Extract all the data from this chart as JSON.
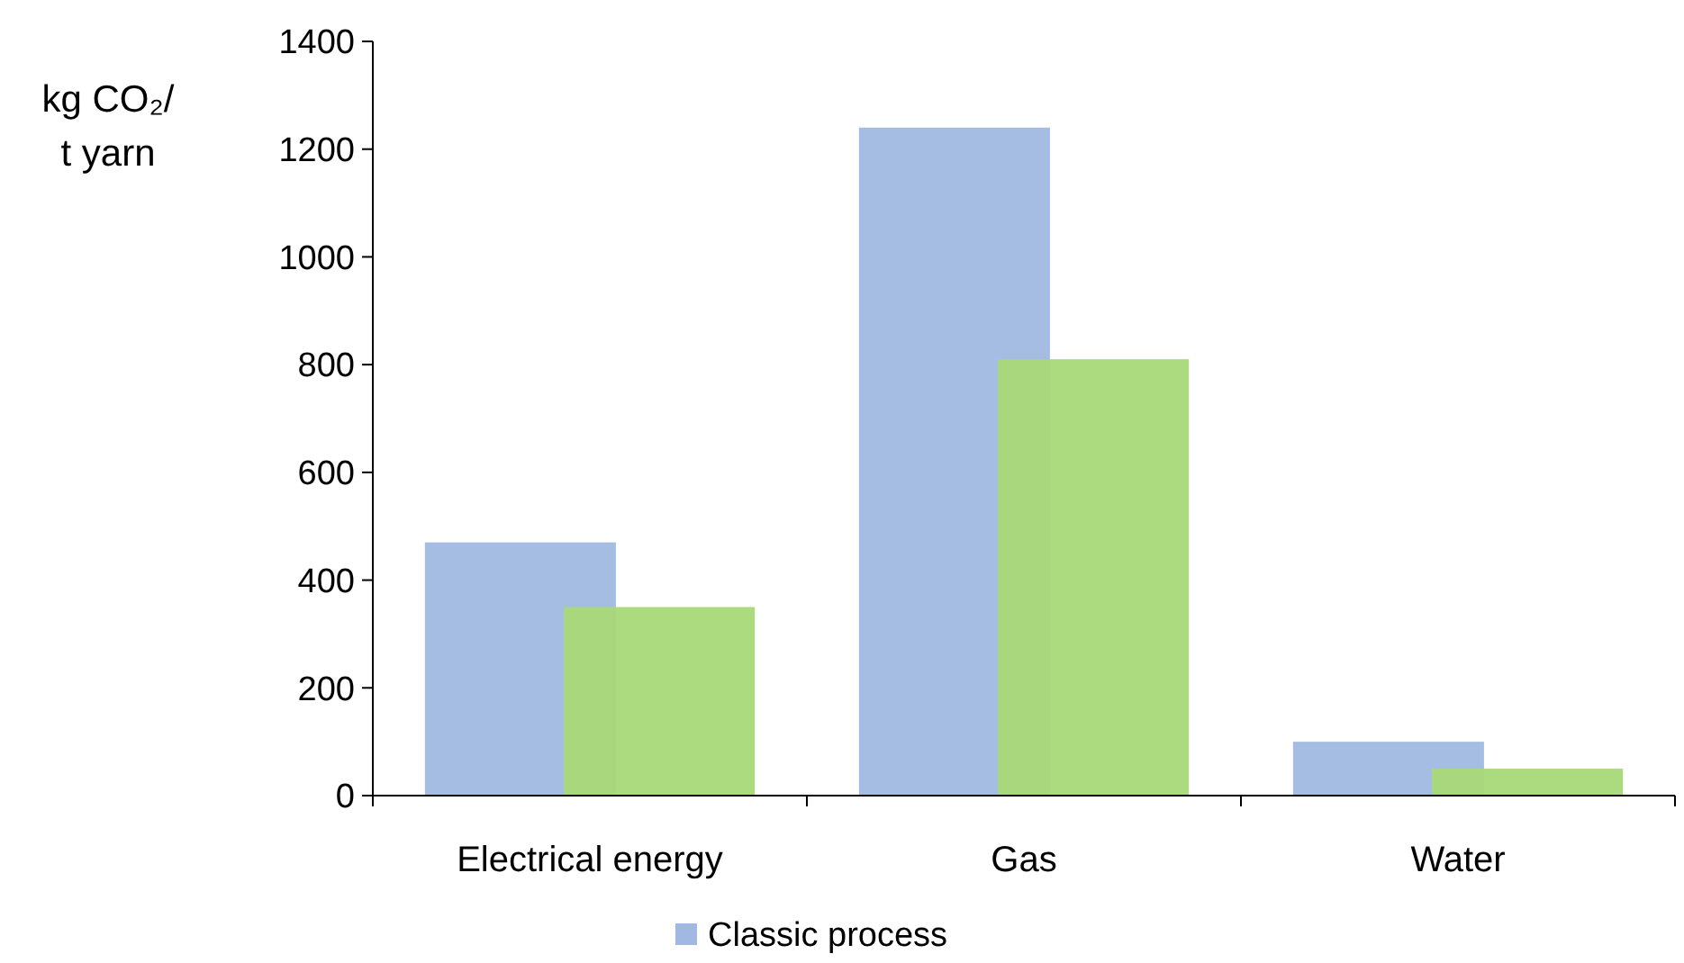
{
  "chart_data": {
    "type": "bar",
    "ylabel": "kg CO₂/\nt yarn",
    "categories": [
      "Electrical energy",
      "Gas",
      "Water"
    ],
    "series": [
      {
        "name": "Classic process",
        "color": "#a0b8e2",
        "values": [
          470,
          1240,
          100
        ]
      },
      {
        "color": "#a8d878",
        "values": [
          350,
          810,
          50
        ]
      }
    ],
    "ylim": [
      0,
      1400
    ],
    "yticks": [
      0,
      200,
      400,
      600,
      800,
      1000,
      1200,
      1400
    ],
    "grid": false,
    "legend": "bottom"
  }
}
